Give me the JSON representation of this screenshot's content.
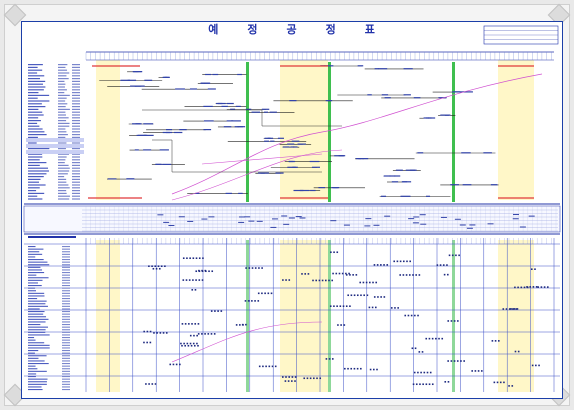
{
  "document": {
    "title_chars": [
      "예",
      "정",
      "공",
      "정",
      "표"
    ]
  }
}
